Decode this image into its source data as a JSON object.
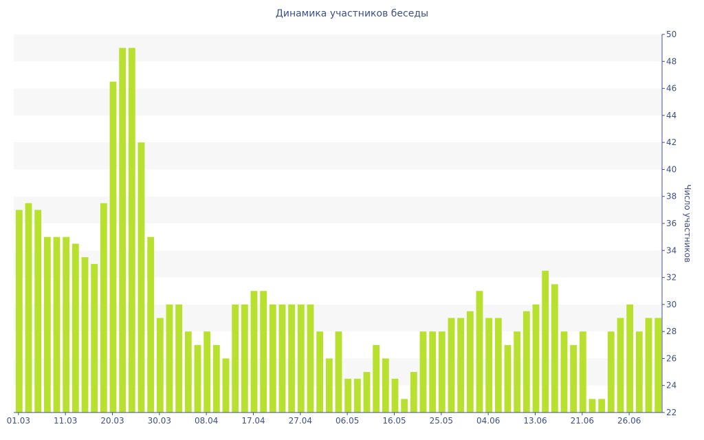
{
  "chart_data": {
    "type": "bar",
    "title": "Динамика участников беседы",
    "xlabel": "",
    "ylabel": "Число участников",
    "ylim": [
      22,
      50
    ],
    "y_ticks": [
      22,
      24,
      26,
      28,
      30,
      32,
      34,
      36,
      38,
      40,
      42,
      44,
      46,
      48,
      50
    ],
    "y_axis_side": "right",
    "x_tick_labels": [
      {
        "label": "01.03",
        "index": 0
      },
      {
        "label": "11.03",
        "index": 5
      },
      {
        "label": "20.03",
        "index": 10
      },
      {
        "label": "30.03",
        "index": 15
      },
      {
        "label": "08.04",
        "index": 20
      },
      {
        "label": "17.04",
        "index": 25
      },
      {
        "label": "27.04",
        "index": 30
      },
      {
        "label": "06.05",
        "index": 35
      },
      {
        "label": "16.05",
        "index": 40
      },
      {
        "label": "25.05",
        "index": 45
      },
      {
        "label": "04.06",
        "index": 50
      },
      {
        "label": "13.06",
        "index": 55
      },
      {
        "label": "21.06",
        "index": 60
      },
      {
        "label": "26.06",
        "index": 65
      }
    ],
    "values": [
      37,
      37.5,
      37,
      35,
      35,
      35,
      34.5,
      33.5,
      33,
      37.5,
      46.5,
      49,
      49,
      42,
      35,
      29,
      30,
      30,
      28,
      27,
      28,
      27,
      26,
      30,
      30,
      31,
      31,
      30,
      30,
      30,
      30,
      30,
      28,
      26,
      28,
      24.5,
      24.5,
      25,
      27,
      26,
      24.5,
      23,
      25,
      28,
      28,
      28,
      29,
      29,
      29.5,
      31,
      29,
      29,
      27,
      28,
      29.5,
      30,
      32.5,
      31.5,
      28,
      27,
      28,
      23,
      23,
      28,
      29,
      30,
      28,
      29,
      29
    ],
    "bar_color": "#b8e02e",
    "band_color": "#f7f7f7",
    "axis_color": "#3c4f8c",
    "grid": "alternating-bands"
  }
}
